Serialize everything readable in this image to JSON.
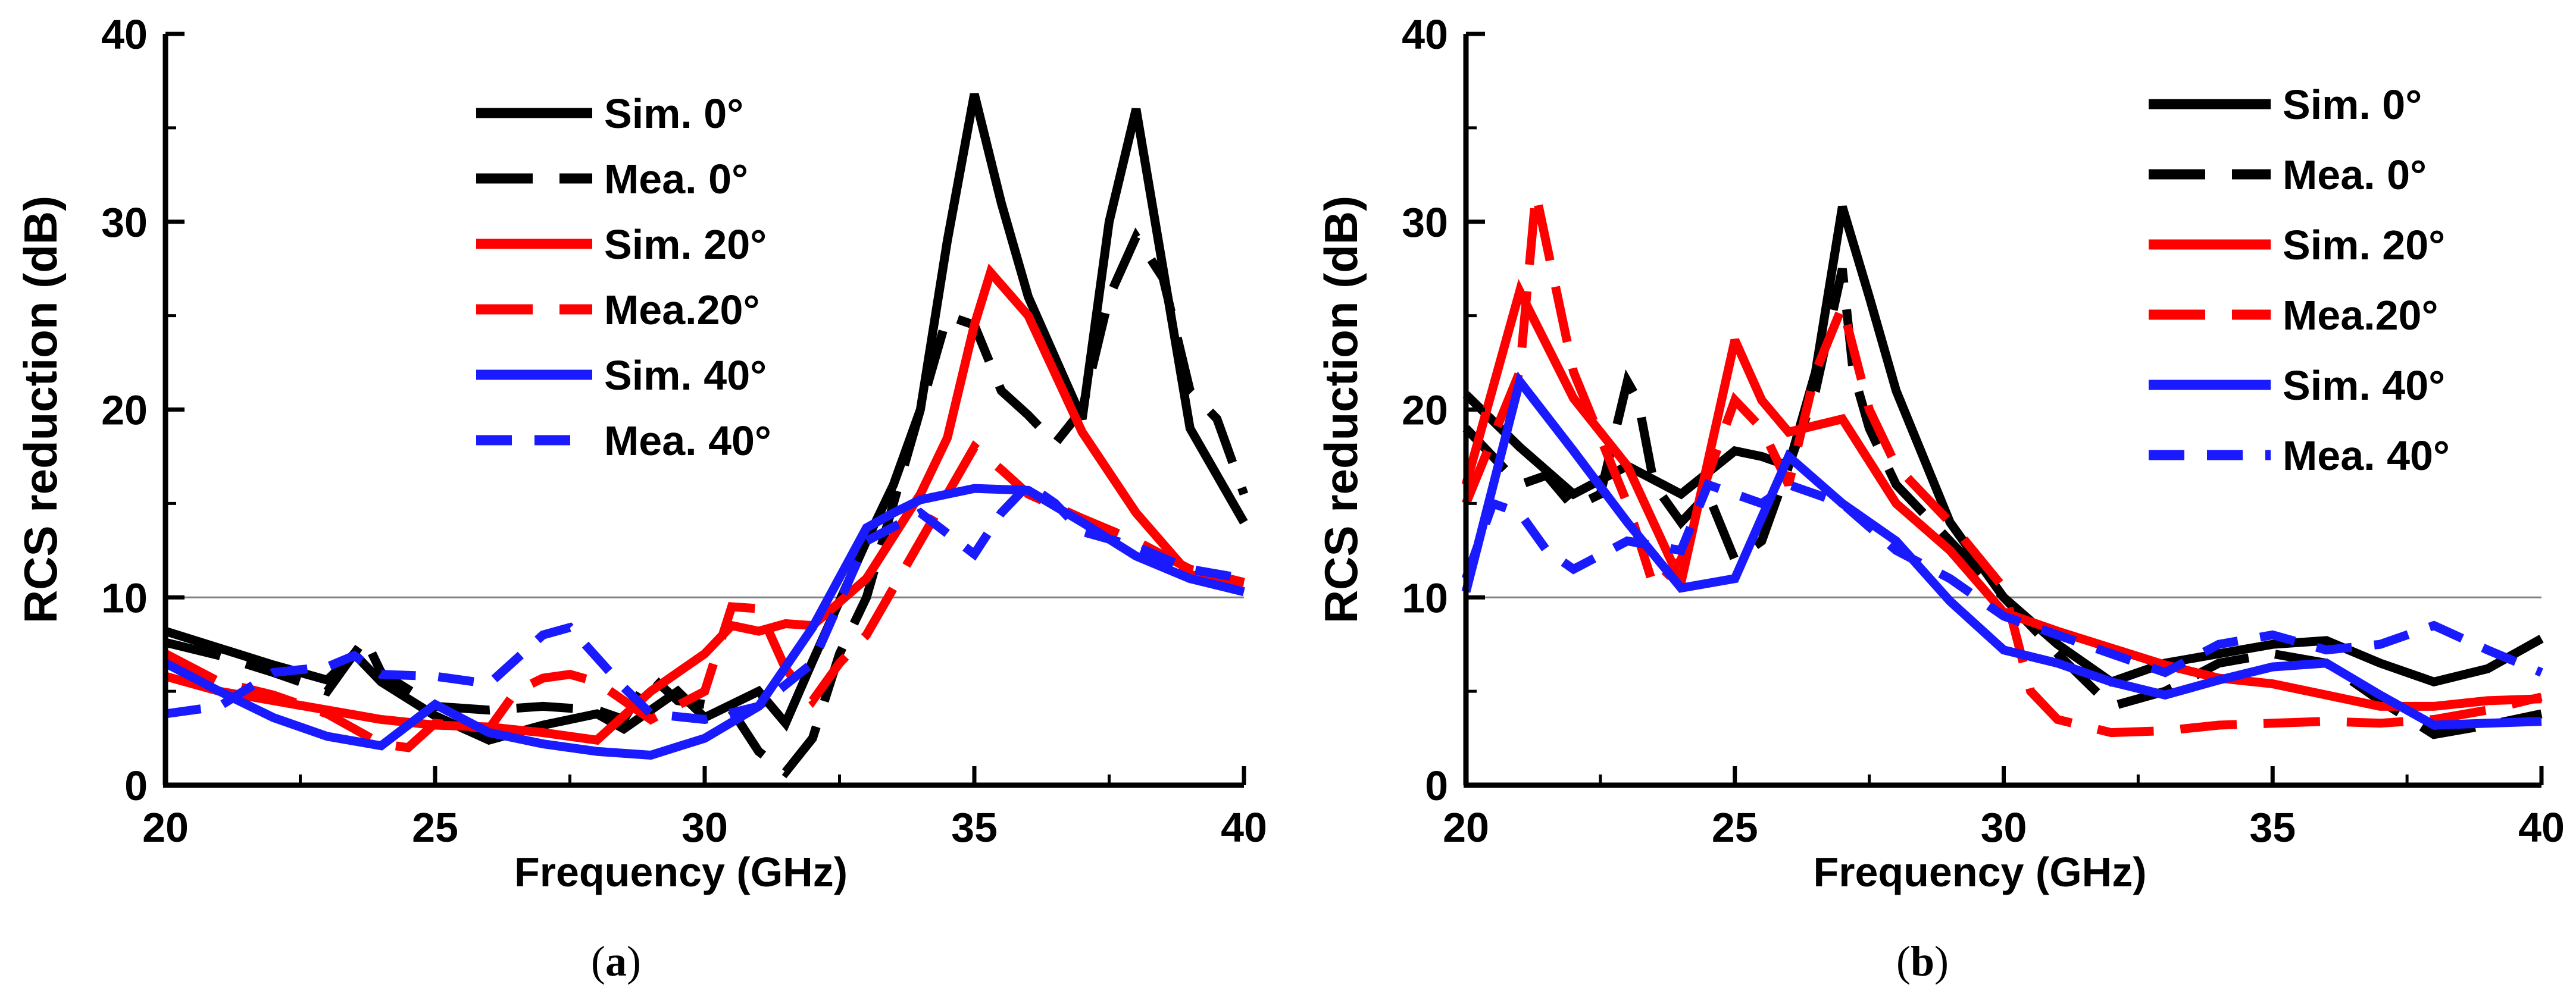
{
  "colors": {
    "black": "#000000",
    "red": "#ff0000",
    "blue": "#1a1aff",
    "refline": "#808080"
  },
  "chart_data": [
    {
      "type": "line",
      "panel_label": "(a)",
      "xlabel": "Frequency (GHz)",
      "ylabel": "RCS reduction (dB)",
      "xlim": [
        20,
        40
      ],
      "ylim": [
        0,
        40
      ],
      "xticks": [
        20,
        25,
        30,
        35,
        40
      ],
      "yticks": [
        0,
        10,
        20,
        30,
        40
      ],
      "reference_line_y": 10,
      "legend_position": "top-center",
      "series": [
        {
          "name": "Sim. 0°",
          "color": "black",
          "style": "solid",
          "x": [
            20,
            21,
            22,
            23,
            23.5,
            24,
            25,
            26,
            27,
            28,
            28.5,
            29,
            29.5,
            30,
            31,
            31.5,
            32,
            33,
            33.5,
            34,
            34.5,
            35,
            35.5,
            36,
            37,
            37.5,
            38,
            39,
            40
          ],
          "y": [
            8.2,
            7.3,
            6.4,
            5.6,
            7,
            5.5,
            3.7,
            2.4,
            3.2,
            3.8,
            3,
            4,
            5,
            3.6,
            5,
            3.3,
            6.6,
            13,
            16,
            20,
            29,
            36.8,
            31,
            26,
            19.5,
            30,
            36,
            19,
            14
          ]
        },
        {
          "name": "Mea. 0°",
          "color": "black",
          "style": "dashed",
          "x": [
            20,
            21,
            22,
            23,
            23.7,
            24,
            25,
            26,
            27,
            28,
            28.5,
            29,
            29.5,
            30,
            30.5,
            31,
            31.5,
            32,
            32.5,
            33,
            33.5,
            34,
            34.5,
            35,
            35.5,
            36,
            36.5,
            37,
            37.5,
            38,
            38.5,
            39,
            39.5,
            40
          ],
          "y": [
            7.6,
            6.9,
            6,
            5,
            7.8,
            6,
            4.2,
            4,
            4.2,
            4,
            3.5,
            5.8,
            4.5,
            4.3,
            4,
            1.8,
            0.7,
            2.5,
            7,
            10,
            15,
            20,
            25,
            24.5,
            21,
            19.7,
            18.2,
            20,
            26,
            29.2,
            27,
            21,
            19.5,
            15.5
          ]
        },
        {
          "name": "Sim. 20°",
          "color": "red",
          "style": "solid",
          "x": [
            20,
            21,
            22,
            23,
            24,
            25,
            26,
            27,
            28,
            29,
            29.5,
            30,
            30.5,
            31,
            31.5,
            32,
            33,
            34,
            34.5,
            35,
            35.3,
            36,
            37,
            38,
            39,
            40
          ],
          "y": [
            5.8,
            5,
            4.5,
            4,
            3.5,
            3.2,
            3.1,
            2.8,
            2.4,
            5,
            6,
            7,
            8.5,
            8.2,
            8.6,
            8.5,
            11,
            15.5,
            18.5,
            24.5,
            27.3,
            25,
            18.8,
            14.5,
            11.2,
            10.8
          ]
        },
        {
          "name": "Mea.20°",
          "color": "red",
          "style": "dashed",
          "x": [
            20,
            21,
            22,
            23,
            24,
            24.5,
            25,
            26,
            26.5,
            27,
            27.5,
            28,
            29,
            30,
            30.5,
            31,
            31.5,
            32,
            32.5,
            33,
            33.5,
            34,
            34.5,
            35,
            35.5,
            36,
            37,
            38,
            39,
            40
          ],
          "y": [
            7,
            5.5,
            4.8,
            3.8,
            2.2,
            2,
            3.3,
            3,
            5,
            5.7,
            5.9,
            5.5,
            3.5,
            5,
            9.5,
            9.4,
            6.2,
            4.5,
            6.5,
            8,
            10.5,
            13,
            15.5,
            18,
            16.8,
            15.5,
            14.2,
            13,
            11.5,
            10.8
          ]
        },
        {
          "name": "Sim. 40°",
          "color": "blue",
          "style": "solid",
          "x": [
            20,
            21,
            22,
            23,
            24,
            25,
            26,
            27,
            28,
            29,
            30,
            31,
            32,
            33,
            33.5,
            34,
            35,
            36,
            37,
            38,
            39,
            40
          ],
          "y": [
            6.5,
            5,
            3.6,
            2.6,
            2.1,
            4.3,
            2.8,
            2.2,
            1.8,
            1.6,
            2.5,
            4.2,
            8.4,
            13.7,
            14.5,
            15.2,
            15.8,
            15.7,
            14,
            12.2,
            11,
            10.3
          ]
        },
        {
          "name": "Mea. 40°",
          "color": "blue",
          "style": "dashed",
          "x": [
            20,
            21,
            22,
            23,
            23.5,
            24,
            25,
            26,
            27,
            27.5,
            28,
            28.5,
            29,
            30,
            31,
            32,
            33,
            34,
            35,
            35.5,
            36,
            36.5,
            37,
            38,
            39,
            40
          ],
          "y": [
            3.8,
            4.2,
            6,
            6.3,
            6.9,
            5.9,
            5.8,
            5.4,
            8,
            8.4,
            6.8,
            5.2,
            3.8,
            3.5,
            4.2,
            6.5,
            13,
            14.5,
            12.3,
            14.5,
            16,
            15,
            13.5,
            12.7,
            11.5,
            11
          ]
        }
      ]
    },
    {
      "type": "line",
      "panel_label": "(b)",
      "xlabel": "Frequency (GHz)",
      "ylabel": "RCS reduction (dB)",
      "xlim": [
        20,
        40
      ],
      "ylim": [
        0,
        40
      ],
      "xticks": [
        20,
        25,
        30,
        35,
        40
      ],
      "yticks": [
        0,
        10,
        20,
        30,
        40
      ],
      "reference_line_y": 10,
      "legend_position": "top-right",
      "series": [
        {
          "name": "Sim. 0°",
          "color": "black",
          "style": "solid",
          "x": [
            20,
            21,
            22,
            23,
            24,
            25,
            25.5,
            26,
            26.5,
            27,
            27.5,
            28,
            29,
            30,
            31,
            32,
            33,
            34,
            35,
            36,
            37,
            38,
            39,
            40
          ],
          "y": [
            20.8,
            18,
            15.5,
            17,
            15.5,
            17.8,
            17.5,
            17,
            22,
            30.8,
            26,
            21,
            14,
            10,
            7.5,
            5.5,
            6.5,
            7,
            7.5,
            7.7,
            6.5,
            5.5,
            6.2,
            7.8
          ]
        },
        {
          "name": "Mea. 0°",
          "color": "black",
          "style": "dashed",
          "x": [
            20,
            21,
            21.5,
            22,
            22.5,
            23,
            23.2,
            23.5,
            24,
            24.5,
            25,
            25.5,
            26,
            26.5,
            27,
            27.2,
            27.5,
            28,
            29,
            30,
            31,
            32,
            33,
            34,
            35,
            36,
            37,
            38,
            39,
            40
          ],
          "y": [
            19,
            16,
            16.5,
            14.8,
            15.5,
            21.5,
            20.5,
            16,
            14,
            15.5,
            12,
            13,
            17,
            21,
            27.5,
            22,
            19,
            16,
            13,
            10,
            7,
            4.2,
            5,
            6.5,
            7,
            6.5,
            4.5,
            2.7,
            3.2,
            3.8
          ]
        },
        {
          "name": "Sim. 20°",
          "color": "red",
          "style": "solid",
          "x": [
            20,
            21,
            22,
            23,
            24,
            25,
            25.5,
            26,
            27,
            28,
            29,
            30,
            31,
            32,
            33,
            34,
            35,
            36,
            37,
            38,
            39,
            40
          ],
          "y": [
            16,
            26.3,
            20.6,
            17,
            10.8,
            23.7,
            20.5,
            18.8,
            19.5,
            15,
            12.5,
            9.2,
            8.2,
            7.3,
            6.4,
            5.7,
            5.4,
            4.8,
            4.2,
            4.2,
            4.5,
            4.6
          ]
        },
        {
          "name": "Mea.20°",
          "color": "red",
          "style": "dashed",
          "x": [
            20,
            21,
            21.3,
            22,
            23,
            23.5,
            24,
            24.5,
            25,
            25.5,
            26,
            26.5,
            27,
            27.5,
            28,
            29,
            30,
            30.5,
            31,
            32,
            33,
            34,
            35,
            36,
            37,
            38,
            39,
            40
          ],
          "y": [
            15,
            22,
            31.5,
            22,
            15,
            10.5,
            12,
            16.5,
            20.5,
            19,
            16,
            22,
            25.5,
            20,
            17,
            14,
            10.5,
            5,
            3.5,
            2.8,
            2.9,
            3.2,
            3.3,
            3.4,
            3.3,
            3.5,
            4,
            4.7
          ]
        },
        {
          "name": "Sim. 40°",
          "color": "blue",
          "style": "solid",
          "x": [
            20,
            21,
            22,
            23,
            24,
            25,
            26,
            27,
            28,
            29,
            30,
            31,
            32,
            33,
            34,
            35,
            36,
            37,
            38,
            39,
            40
          ],
          "y": [
            10.3,
            21.5,
            17.8,
            14,
            10.5,
            11,
            17.5,
            15,
            13,
            9.8,
            7.2,
            6.5,
            5.5,
            4.8,
            5.6,
            6.3,
            6.5,
            4.8,
            3.2,
            3.3,
            3.4
          ]
        },
        {
          "name": "Mea. 40°",
          "color": "blue",
          "style": "dashed",
          "x": [
            20,
            20.5,
            21,
            21.5,
            22,
            23,
            24,
            24.5,
            25,
            25.5,
            26,
            26.5,
            27,
            28,
            29,
            30,
            31,
            32,
            33,
            34,
            35,
            36,
            37,
            38,
            39,
            40
          ],
          "y": [
            11,
            15,
            14.5,
            12.5,
            11.5,
            13,
            12.5,
            16,
            15.5,
            15,
            16,
            15.5,
            15,
            12.5,
            11,
            9,
            8,
            7,
            6,
            7.5,
            8,
            7.2,
            7.5,
            8.5,
            7.2,
            6
          ]
        }
      ]
    }
  ]
}
